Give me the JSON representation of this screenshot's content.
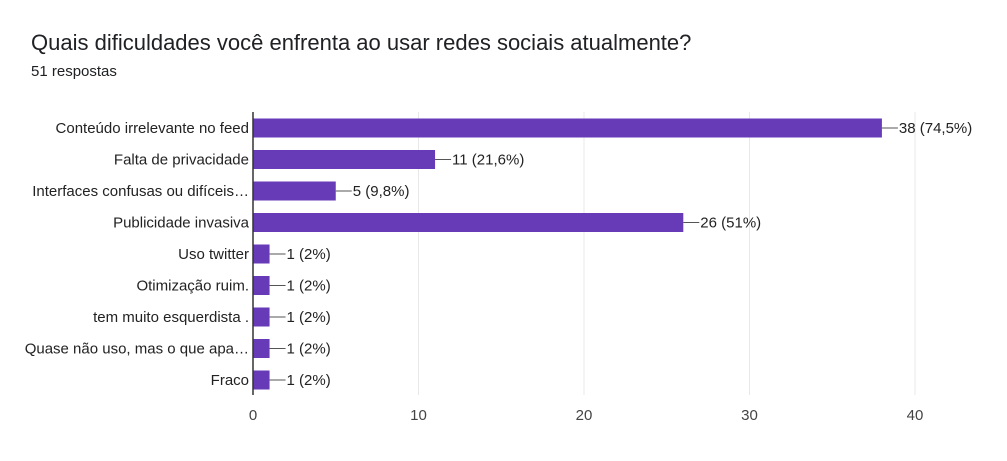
{
  "question": {
    "title": "Quais dificuldades você enfrenta ao usar redes sociais atualmente?",
    "responses": "51 respostas"
  },
  "colors": {
    "bar": "#673ab7",
    "grid": "#e8e8e8",
    "axis": "#333333",
    "leader": "#555555"
  },
  "chart_data": {
    "type": "bar",
    "orientation": "horizontal",
    "categories": [
      "Conteúdo irrelevante no feed",
      "Falta de privacidade",
      "Interfaces confusas ou difíceis…",
      "Publicidade invasiva",
      "Uso twitter",
      "Otimização ruim.",
      "tem muito esquerdista .",
      "Quase não uso, mas o que apa…",
      "Fraco"
    ],
    "values": [
      38,
      11,
      5,
      26,
      1,
      1,
      1,
      1,
      1
    ],
    "value_labels": [
      "38 (74,5%)",
      "11 (21,6%)",
      "5 (9,8%)",
      "26 (51%)",
      "1 (2%)",
      "1 (2%)",
      "1 (2%)",
      "1 (2%)",
      "1 (2%)"
    ],
    "xlim": [
      0,
      40
    ],
    "xticks": [
      0,
      10,
      20,
      30,
      40
    ],
    "grid": true
  }
}
